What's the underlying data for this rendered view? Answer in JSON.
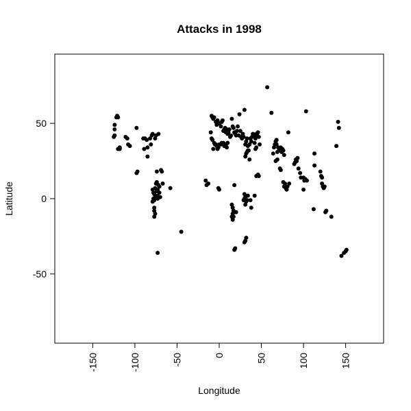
{
  "chart_data": {
    "type": "scatter",
    "title": "Attacks in 1998",
    "xlabel": "Longitude",
    "ylabel": "Latitude",
    "xlim": [
      -195,
      195
    ],
    "ylim": [
      -96,
      96
    ],
    "xticks": [
      -150,
      -100,
      -50,
      0,
      50,
      100,
      150
    ],
    "xtick_labels": [
      "-150",
      "-100",
      "-50",
      "0",
      "50",
      "100",
      "150"
    ],
    "yticks": [
      -50,
      0,
      50
    ],
    "ytick_labels": [
      "-50",
      "0",
      "50"
    ],
    "grid": false,
    "point_color": "#000000",
    "points": [
      [
        -125,
        41
      ],
      [
        -124,
        42
      ],
      [
        -124,
        46
      ],
      [
        -124,
        49
      ],
      [
        -122,
        54
      ],
      [
        -121,
        55
      ],
      [
        -120,
        54
      ],
      [
        -120,
        33
      ],
      [
        -118,
        34
      ],
      [
        -118,
        33
      ],
      [
        -111,
        41
      ],
      [
        -109,
        40
      ],
      [
        -108,
        36
      ],
      [
        -106,
        35
      ],
      [
        -98,
        47
      ],
      [
        -98,
        17
      ],
      [
        -97,
        18
      ],
      [
        -90,
        40
      ],
      [
        -88,
        40
      ],
      [
        -86,
        39
      ],
      [
        -89,
        33
      ],
      [
        -85,
        34
      ],
      [
        -85,
        28
      ],
      [
        -80,
        42
      ],
      [
        -81,
        36
      ],
      [
        -82,
        40
      ],
      [
        -79,
        43
      ],
      [
        -76,
        40
      ],
      [
        -75,
        42
      ],
      [
        -72,
        43
      ],
      [
        -74,
        18
      ],
      [
        -68,
        18
      ],
      [
        -69,
        19
      ],
      [
        -67,
        10
      ],
      [
        -58,
        7
      ],
      [
        -79,
        6
      ],
      [
        -78,
        4
      ],
      [
        -77,
        3
      ],
      [
        -76,
        7
      ],
      [
        -75,
        10
      ],
      [
        -74,
        5
      ],
      [
        -74,
        11
      ],
      [
        -73,
        2
      ],
      [
        -73,
        6
      ],
      [
        -72,
        9
      ],
      [
        -71,
        4
      ],
      [
        -71,
        8
      ],
      [
        -70,
        1
      ],
      [
        -76,
        1
      ],
      [
        -77,
        -1
      ],
      [
        -79,
        -2
      ],
      [
        -78,
        0
      ],
      [
        -75,
        2
      ],
      [
        -73,
        0
      ],
      [
        -77,
        -6
      ],
      [
        -77,
        -8
      ],
      [
        -76,
        -10
      ],
      [
        -77,
        -12
      ],
      [
        -73,
        -36
      ],
      [
        -45,
        -22
      ],
      [
        -16,
        12
      ],
      [
        -15,
        9
      ],
      [
        -13,
        10
      ],
      [
        -1,
        7
      ],
      [
        0,
        6
      ],
      [
        -9,
        55
      ],
      [
        -8,
        54
      ],
      [
        -7,
        53
      ],
      [
        -6,
        54
      ],
      [
        -4,
        51
      ],
      [
        -3,
        49
      ],
      [
        -2,
        52
      ],
      [
        0,
        50
      ],
      [
        2,
        48
      ],
      [
        3,
        51
      ],
      [
        4,
        52
      ],
      [
        5,
        45
      ],
      [
        6,
        46
      ],
      [
        7,
        47
      ],
      [
        8,
        44
      ],
      [
        9,
        46
      ],
      [
        10,
        43
      ],
      [
        11,
        44
      ],
      [
        12,
        46
      ],
      [
        13,
        41
      ],
      [
        14,
        42
      ],
      [
        15,
        53
      ],
      [
        16,
        48
      ],
      [
        17,
        47
      ],
      [
        18,
        44
      ],
      [
        19,
        43
      ],
      [
        20,
        42
      ],
      [
        21,
        45
      ],
      [
        22,
        48
      ],
      [
        23,
        42
      ],
      [
        24,
        56
      ],
      [
        25,
        45
      ],
      [
        26,
        41
      ],
      [
        27,
        40
      ],
      [
        28,
        43
      ],
      [
        29,
        41
      ],
      [
        30,
        59
      ],
      [
        31,
        36
      ],
      [
        32,
        38
      ],
      [
        33,
        40
      ],
      [
        34,
        35
      ],
      [
        35,
        32
      ],
      [
        36,
        36
      ],
      [
        37,
        40
      ],
      [
        38,
        38
      ],
      [
        39,
        41
      ],
      [
        40,
        43
      ],
      [
        41,
        42
      ],
      [
        42,
        37
      ],
      [
        43,
        40
      ],
      [
        44,
        43
      ],
      [
        45,
        42
      ],
      [
        46,
        44
      ],
      [
        47,
        41
      ],
      [
        48,
        36
      ],
      [
        44,
        34
      ],
      [
        43,
        33
      ],
      [
        -10,
        44
      ],
      [
        -9,
        40
      ],
      [
        -8,
        39
      ],
      [
        -6,
        37
      ],
      [
        -5,
        36
      ],
      [
        -4,
        36
      ],
      [
        -3,
        35
      ],
      [
        -1,
        34
      ],
      [
        0,
        36
      ],
      [
        2,
        36
      ],
      [
        3,
        37
      ],
      [
        5,
        37
      ],
      [
        6,
        35
      ],
      [
        8,
        36
      ],
      [
        10,
        37
      ],
      [
        -7,
        33
      ],
      [
        -2,
        33
      ],
      [
        9,
        34
      ],
      [
        33,
        31
      ],
      [
        34,
        32
      ],
      [
        32,
        30
      ],
      [
        31,
        28
      ],
      [
        36,
        26
      ],
      [
        57,
        74
      ],
      [
        62,
        57
      ],
      [
        18,
        9
      ],
      [
        15,
        -4
      ],
      [
        16,
        -6
      ],
      [
        17,
        -8
      ],
      [
        16,
        -10
      ],
      [
        15,
        -12
      ],
      [
        16,
        -14
      ],
      [
        17,
        -12
      ],
      [
        18,
        -9
      ],
      [
        20,
        -9
      ],
      [
        29,
        -1
      ],
      [
        30,
        0
      ],
      [
        30,
        3
      ],
      [
        31,
        1
      ],
      [
        32,
        -2
      ],
      [
        33,
        -1
      ],
      [
        34,
        2
      ],
      [
        31,
        -4
      ],
      [
        38,
        -6
      ],
      [
        37,
        -1
      ],
      [
        42,
        2
      ],
      [
        44,
        15
      ],
      [
        46,
        16
      ],
      [
        47,
        15
      ],
      [
        32,
        -26
      ],
      [
        31,
        -28
      ],
      [
        30,
        -29
      ],
      [
        19,
        -33
      ],
      [
        18,
        -34
      ],
      [
        64,
        30
      ],
      [
        65,
        34
      ],
      [
        66,
        36
      ],
      [
        67,
        38
      ],
      [
        68,
        36
      ],
      [
        69,
        31
      ],
      [
        70,
        34
      ],
      [
        71,
        32
      ],
      [
        72,
        33
      ],
      [
        73,
        34
      ],
      [
        74,
        31
      ],
      [
        75,
        33
      ],
      [
        76,
        32
      ],
      [
        77,
        29
      ],
      [
        69,
        26
      ],
      [
        67,
        25
      ],
      [
        68,
        39
      ],
      [
        72,
        20
      ],
      [
        73,
        19
      ],
      [
        76,
        11
      ],
      [
        77,
        8
      ],
      [
        78,
        10
      ],
      [
        79,
        7
      ],
      [
        80,
        6
      ],
      [
        81,
        8
      ],
      [
        82,
        44
      ],
      [
        83,
        10
      ],
      [
        89,
        23
      ],
      [
        90,
        24
      ],
      [
        91,
        26
      ],
      [
        92,
        25
      ],
      [
        93,
        27
      ],
      [
        94,
        20
      ],
      [
        96,
        17
      ],
      [
        97,
        14
      ],
      [
        100,
        14
      ],
      [
        101,
        12
      ],
      [
        102,
        13
      ],
      [
        100,
        6
      ],
      [
        103,
        58
      ],
      [
        104,
        12
      ],
      [
        113,
        30
      ],
      [
        113,
        22
      ],
      [
        112,
        -7
      ],
      [
        120,
        18
      ],
      [
        121,
        15
      ],
      [
        122,
        14
      ],
      [
        122,
        10
      ],
      [
        123,
        8
      ],
      [
        124,
        7
      ],
      [
        125,
        8
      ],
      [
        126,
        -9
      ],
      [
        127,
        -8
      ],
      [
        133,
        -12
      ],
      [
        139,
        35
      ],
      [
        141,
        51
      ],
      [
        142,
        47
      ],
      [
        145,
        -38
      ],
      [
        148,
        -36
      ],
      [
        150,
        -35
      ],
      [
        151,
        -34
      ]
    ]
  }
}
